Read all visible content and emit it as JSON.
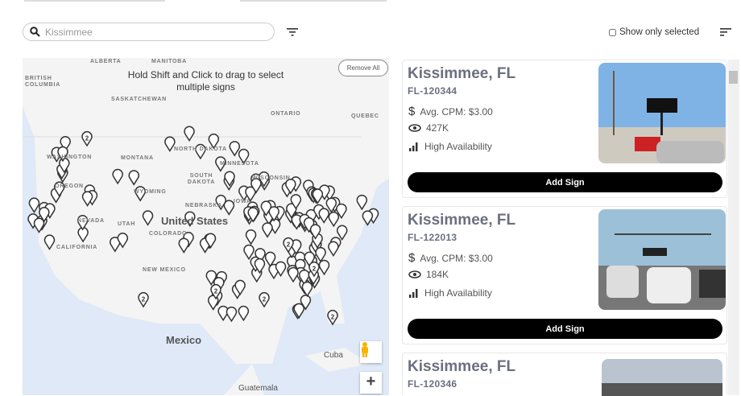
{
  "search": {
    "value": "Kissimmee",
    "placeholder": "Kissimmee"
  },
  "toolbar": {
    "show_only_selected": "Show only selected",
    "filter_icon": "filter-icon",
    "sort_icon": "sort-icon"
  },
  "map": {
    "hint": "Hold Shift and Click to drag to select multiple signs",
    "remove_all": "Remove All",
    "labels": {
      "alberta": "ALBERTA",
      "manitoba": "MANITOBA",
      "bc": "BRITISH COLUMBIA",
      "sask": "SASKATCHEWAN",
      "ontario": "ONTARIO",
      "quebec": "QUEBEC",
      "washington": "WASHINGTON",
      "montana": "MONTANA",
      "nd": "NORTH DAKOTA",
      "sd": "SOUTH DAKOTA",
      "oregon": "OREGON",
      "wyoming": "WYOMING",
      "nebraska": "NEBRASKA",
      "nevada": "NEVADA",
      "utah": "UTAH",
      "colorado": "COLORADO",
      "us": "United States",
      "california": "CALIFORNIA",
      "newmexico": "NEW MEXICO",
      "mexico": "Mexico",
      "cuba": "Cuba",
      "guatemala": "Guatemala",
      "iowa": "IOWA",
      "minnesota": "MINNESOTA",
      "wisconsin": "WISCONSIN"
    },
    "cluster_label": "2"
  },
  "cards": [
    {
      "title": "Kissimmee, FL",
      "code": "FL-120344",
      "cpm": "Avg. CPM: $3.00",
      "views": "427K",
      "availability": "High Availability",
      "button": "Add Sign"
    },
    {
      "title": "Kissimmee, FL",
      "code": "FL-122013",
      "cpm": "Avg. CPM: $3.00",
      "views": "184K",
      "availability": "High Availability",
      "button": "Add Sign"
    },
    {
      "title": "Kissimmee, FL",
      "code": "FL-120346"
    }
  ]
}
